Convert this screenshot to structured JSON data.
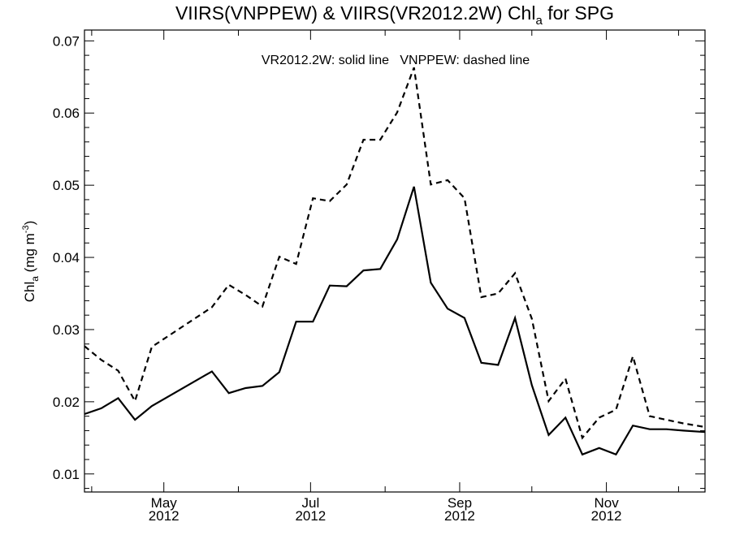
{
  "chart_data": {
    "type": "line",
    "title": {
      "prefix": "VIIRS(VNPPEW) & VIIRS(VR2012.2W)  Chl",
      "subscript": "a",
      "suffix": " for SPG"
    },
    "ylabel": {
      "base": "Chl",
      "subscript": "a",
      "middle": " (mg m",
      "superscript": "-3",
      "end": ")"
    },
    "annotation": "VR2012.2W: solid line   VNPPEW: dashed line",
    "xlim": [
      "2012-03-29",
      "2012-12-12"
    ],
    "ylim": [
      0.0075,
      0.0715
    ],
    "y_ticks": [
      0.01,
      0.02,
      0.03,
      0.04,
      0.05,
      0.06,
      0.07
    ],
    "y_tick_labels": [
      "0.01",
      "0.02",
      "0.03",
      "0.04",
      "0.05",
      "0.06",
      "0.07"
    ],
    "x_major_ticks": [
      {
        "date": "2012-05-01",
        "label": "May",
        "year": "2012"
      },
      {
        "date": "2012-07-01",
        "label": "Jul",
        "year": "2012"
      },
      {
        "date": "2012-09-01",
        "label": "Sep",
        "year": "2012"
      },
      {
        "date": "2012-11-01",
        "label": "Nov",
        "year": "2012"
      }
    ],
    "x_minor_ticks": [
      "2012-04-01",
      "2012-06-01",
      "2012-08-01",
      "2012-10-01",
      "2012-12-01"
    ],
    "series": [
      {
        "name": "VR2012.2W",
        "style": "solid",
        "color": "#000000",
        "x": [
          "2012-03-29",
          "2012-04-05",
          "2012-04-12",
          "2012-04-19",
          "2012-04-26",
          "2012-05-21",
          "2012-05-28",
          "2012-06-04",
          "2012-06-11",
          "2012-06-18",
          "2012-06-25",
          "2012-07-02",
          "2012-07-09",
          "2012-07-16",
          "2012-07-23",
          "2012-07-30",
          "2012-08-06",
          "2012-08-13",
          "2012-08-20",
          "2012-08-27",
          "2012-09-03",
          "2012-09-10",
          "2012-09-17",
          "2012-09-24",
          "2012-10-01",
          "2012-10-08",
          "2012-10-15",
          "2012-10-22",
          "2012-10-29",
          "2012-11-05",
          "2012-11-12",
          "2012-11-19",
          "2012-11-26",
          "2012-12-03",
          "2012-12-12"
        ],
        "values": [
          0.0183,
          0.0191,
          0.0205,
          0.0175,
          0.0194,
          0.0242,
          0.0212,
          0.0219,
          0.0222,
          0.0241,
          0.0311,
          0.0311,
          0.0361,
          0.036,
          0.0382,
          0.0384,
          0.0425,
          0.0498,
          0.0365,
          0.0329,
          0.0316,
          0.0254,
          0.0251,
          0.0316,
          0.0223,
          0.0154,
          0.0178,
          0.0127,
          0.0136,
          0.0127,
          0.0167,
          0.0162,
          0.0162,
          0.016,
          0.0158
        ]
      },
      {
        "name": "VNPPEW",
        "style": "dashed",
        "color": "#000000",
        "x": [
          "2012-03-29",
          "2012-04-05",
          "2012-04-12",
          "2012-04-19",
          "2012-04-26",
          "2012-05-21",
          "2012-05-28",
          "2012-06-04",
          "2012-06-11",
          "2012-06-18",
          "2012-06-25",
          "2012-07-02",
          "2012-07-09",
          "2012-07-16",
          "2012-07-23",
          "2012-07-30",
          "2012-08-06",
          "2012-08-13",
          "2012-08-20",
          "2012-08-27",
          "2012-09-03",
          "2012-09-10",
          "2012-09-17",
          "2012-09-24",
          "2012-10-01",
          "2012-10-08",
          "2012-10-15",
          "2012-10-22",
          "2012-10-29",
          "2012-11-05",
          "2012-11-12",
          "2012-11-19",
          "2012-11-26",
          "2012-12-03",
          "2012-12-12"
        ],
        "values": [
          0.0277,
          0.0258,
          0.0243,
          0.0201,
          0.0276,
          0.0331,
          0.0362,
          0.0348,
          0.0332,
          0.0401,
          0.0391,
          0.0482,
          0.0478,
          0.0501,
          0.0563,
          0.0563,
          0.0601,
          0.0663,
          0.0501,
          0.0507,
          0.0482,
          0.0345,
          0.035,
          0.0378,
          0.0315,
          0.0201,
          0.0232,
          0.015,
          0.0178,
          0.0189,
          0.0263,
          0.018,
          0.0175,
          0.017,
          0.0165
        ]
      }
    ]
  }
}
